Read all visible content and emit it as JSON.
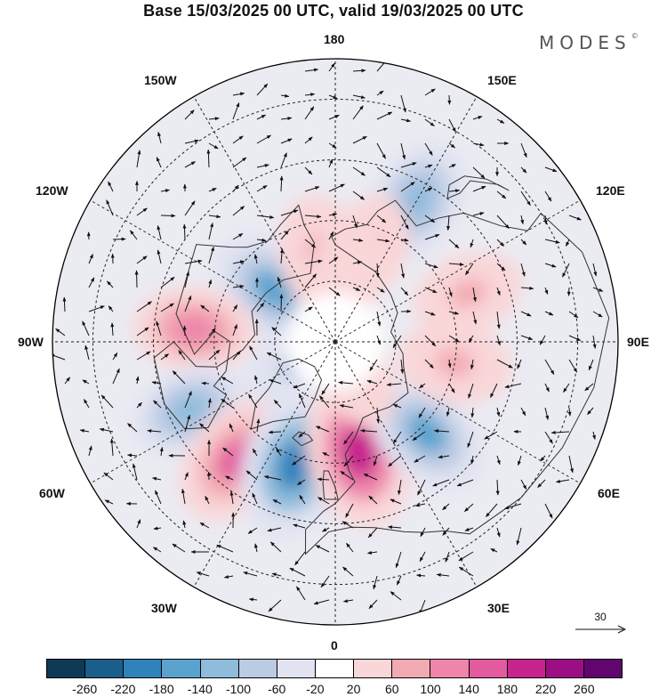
{
  "title": "Base 15/03/2025 00 UTC, valid 19/03/2025 00 UTC",
  "brand": "MODES",
  "brand_mark": "©",
  "meridian_labels": {
    "top": "180",
    "bottom": "0",
    "left": "90W",
    "right": "90E",
    "upper_left": "150W",
    "upper_right": "150E",
    "mid_upper_left": "120W",
    "mid_upper_right": "120E",
    "mid_lower_left": "60W",
    "mid_lower_right": "60E",
    "lower_left": "30W",
    "lower_right": "30E"
  },
  "reference_vector": "30",
  "colorbar": {
    "colors": [
      "#0e3a57",
      "#1a5f8c",
      "#2f83bb",
      "#5aa3cf",
      "#8fbcdc",
      "#bccbe4",
      "#e1e3f1",
      "#ffffff",
      "#f9d6d8",
      "#f2aab2",
      "#ee85aa",
      "#e35a9f",
      "#c8248d",
      "#9c0e84",
      "#60066e"
    ],
    "tick_labels": [
      "-260",
      "-220",
      "-180",
      "-140",
      "-100",
      "-60",
      "-20",
      "20",
      "60",
      "100",
      "140",
      "180",
      "220",
      "260"
    ]
  },
  "anomaly_cells": [
    {
      "lat": 70,
      "lon": -130,
      "value": -150
    },
    {
      "lat": 55,
      "lon": -95,
      "value": 110
    },
    {
      "lat": 50,
      "lon": -65,
      "value": -110
    },
    {
      "lat": 52,
      "lon": -40,
      "value": 150
    },
    {
      "lat": 58,
      "lon": -18,
      "value": -190
    },
    {
      "lat": 62,
      "lon": 12,
      "value": 190
    },
    {
      "lat": 58,
      "lon": 45,
      "value": -140
    },
    {
      "lat": 60,
      "lon": 80,
      "value": 90
    },
    {
      "lat": 55,
      "lon": 110,
      "value": 80
    },
    {
      "lat": 50,
      "lon": 150,
      "value": -130
    },
    {
      "lat": 65,
      "lon": 160,
      "value": 70
    },
    {
      "lat": 68,
      "lon": -170,
      "value": 100
    },
    {
      "lat": 72,
      "lon": 170,
      "value": 60
    },
    {
      "lat": 78,
      "lon": -60,
      "value": -60
    },
    {
      "lat": 80,
      "lon": 30,
      "value": 60
    }
  ]
}
